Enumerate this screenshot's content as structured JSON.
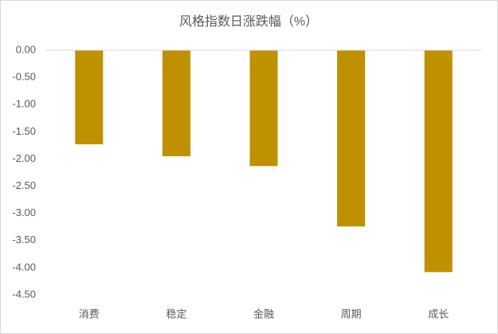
{
  "chart_data": {
    "type": "bar",
    "title": "风格指数日涨跌幅（%）",
    "categories": [
      "消费",
      "稳定",
      "金融",
      "周期",
      "成长"
    ],
    "values": [
      -1.73,
      -1.95,
      -2.13,
      -3.24,
      -4.08
    ],
    "color": "#bf9000",
    "ylim": [
      -4.5,
      0
    ],
    "yticks": [
      {
        "value": 0,
        "label": "0.00"
      },
      {
        "value": -0.5,
        "label": "-0.50"
      },
      {
        "value": -1,
        "label": "-1.00"
      },
      {
        "value": -1.5,
        "label": "-1.50"
      },
      {
        "value": -2,
        "label": "-2.00"
      },
      {
        "value": -2.5,
        "label": "-2.50"
      },
      {
        "value": -3,
        "label": "-3.00"
      },
      {
        "value": -3.5,
        "label": "-3.50"
      },
      {
        "value": -4,
        "label": "-4.00"
      },
      {
        "value": -4.5,
        "label": "-4.50"
      }
    ],
    "grid": false
  }
}
